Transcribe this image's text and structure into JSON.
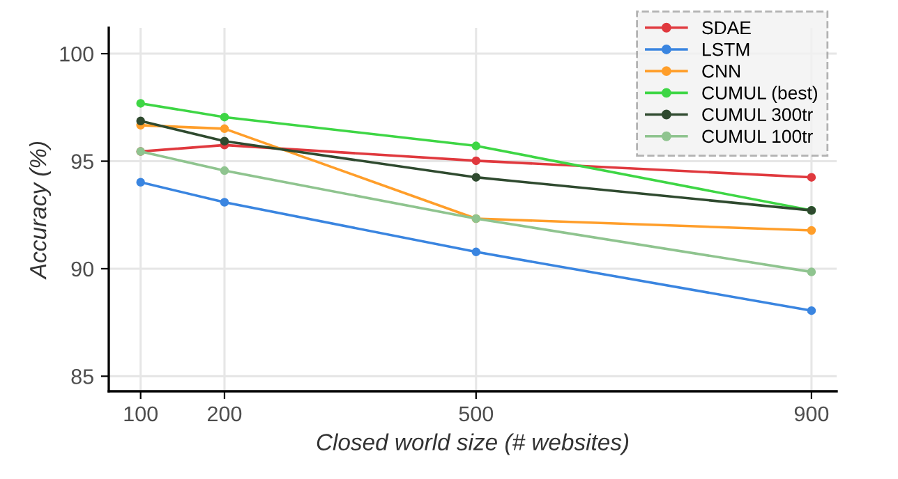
{
  "chart_data": {
    "type": "line",
    "xlabel": "Closed world size (# websites)",
    "ylabel": "Accuracy (%)",
    "x": [
      100,
      200,
      500,
      900
    ],
    "xlim": [
      62,
      930
    ],
    "xticks": [
      100,
      200,
      500,
      900
    ],
    "ylim": [
      84.3,
      101.2
    ],
    "yticks": [
      85,
      90,
      95,
      100
    ],
    "grid": true,
    "legend": "top right",
    "marker": "circle",
    "line_style": "solid",
    "series": [
      {
        "name": "SDAE",
        "color": "#e0393e",
        "values": [
          95.45,
          95.75,
          95.02,
          94.25
        ]
      },
      {
        "name": "LSTM",
        "color": "#3a85e0",
        "values": [
          94.02,
          93.09,
          90.78,
          88.05
        ]
      },
      {
        "name": "CNN",
        "color": "#ff9e2a",
        "values": [
          96.67,
          96.51,
          92.33,
          91.78
        ]
      },
      {
        "name": "CUMUL (best)",
        "color": "#3ed645",
        "values": [
          97.69,
          97.05,
          95.71,
          92.71
        ]
      },
      {
        "name": "CUMUL 300tr",
        "color": "#2f4a2f",
        "values": [
          96.87,
          95.93,
          94.25,
          92.71
        ]
      },
      {
        "name": "CUMUL 100tr",
        "color": "#8fc48f",
        "values": [
          95.45,
          94.56,
          92.33,
          89.85
        ]
      }
    ]
  }
}
